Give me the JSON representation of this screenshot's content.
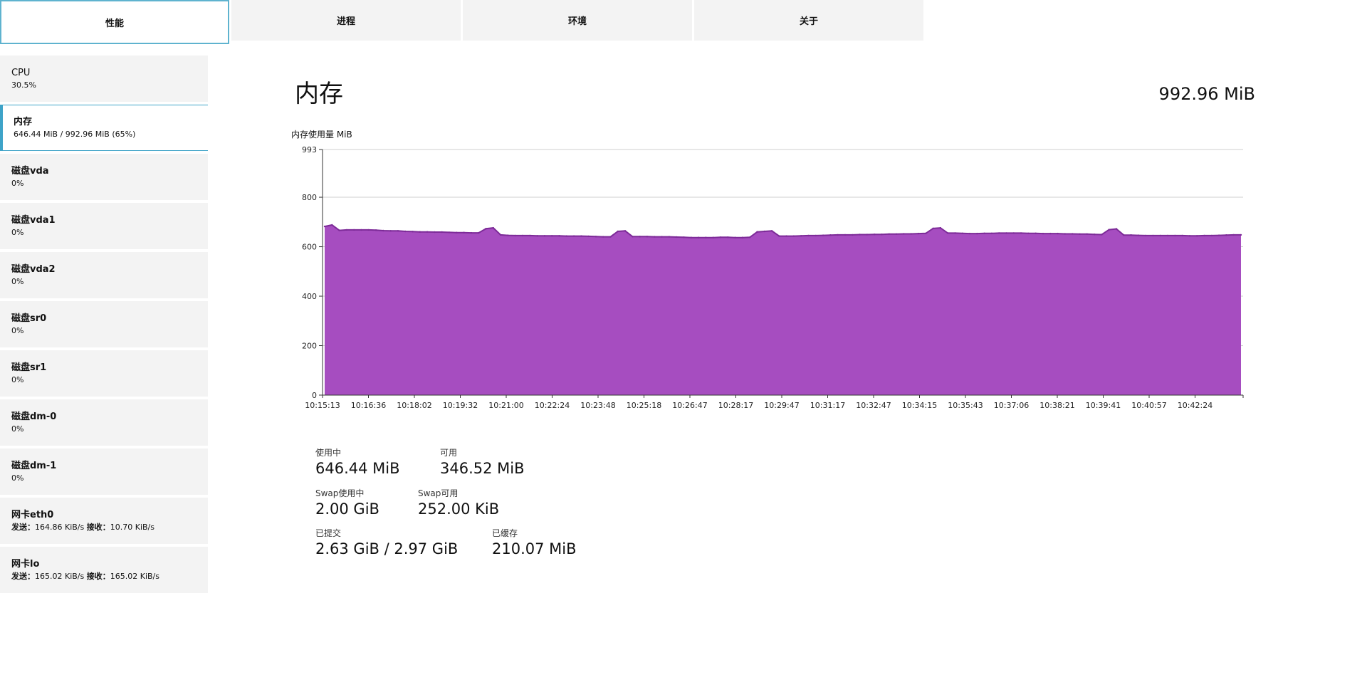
{
  "tabs": [
    {
      "label": "性能"
    },
    {
      "label": "进程"
    },
    {
      "label": "环境"
    },
    {
      "label": "关于"
    }
  ],
  "sidebar": {
    "items": [
      {
        "title": "CPU",
        "sub": "30.5%"
      },
      {
        "title": "内存",
        "sub": "646.44 MiB / 992.96 MiB (65%)"
      },
      {
        "title": "磁盘vda",
        "sub": "0%"
      },
      {
        "title": "磁盘vda1",
        "sub": "0%"
      },
      {
        "title": "磁盘vda2",
        "sub": "0%"
      },
      {
        "title": "磁盘sr0",
        "sub": "0%"
      },
      {
        "title": "磁盘sr1",
        "sub": "0%"
      },
      {
        "title": "磁盘dm-0",
        "sub": "0%"
      },
      {
        "title": "磁盘dm-1",
        "sub": "0%"
      },
      {
        "title": "网卡eth0",
        "send_label": "发送：",
        "send": "164.86 KiB/s",
        "recv_label": "接收：",
        "recv": "10.70 KiB/s"
      },
      {
        "title": "网卡lo",
        "send_label": "发送：",
        "send": "165.02 KiB/s",
        "recv_label": "接收：",
        "recv": "165.02 KiB/s"
      }
    ]
  },
  "main": {
    "title": "内存",
    "total": "992.96 MiB"
  },
  "chart_data": {
    "type": "area",
    "ylabel": "内存使用量 MiB",
    "ylim": [
      0,
      993
    ],
    "yticks": [
      0,
      200,
      400,
      600,
      800,
      993
    ],
    "x_labels": [
      "10:15:13",
      "10:16:36",
      "10:18:02",
      "10:19:32",
      "10:21:00",
      "10:22:24",
      "10:23:48",
      "10:25:18",
      "10:26:47",
      "10:28:17",
      "10:29:47",
      "10:31:17",
      "10:32:47",
      "10:34:15",
      "10:35:43",
      "10:37:06",
      "10:38:21",
      "10:39:41",
      "10:40:57",
      "10:42:24"
    ],
    "grid": true,
    "colors": {
      "fill": "#a64dc0",
      "line": "#7d2b98",
      "grid": "#cfcfcf"
    },
    "series": [
      {
        "values": [
          682,
          688,
          666,
          668,
          668,
          668,
          668,
          667,
          665,
          664,
          664,
          662,
          661,
          660,
          660,
          659,
          659,
          658,
          657,
          657,
          656,
          656,
          673,
          676,
          648,
          646,
          645,
          645,
          645,
          644,
          644,
          644,
          644,
          643,
          643,
          643,
          642,
          641,
          640,
          640,
          662,
          664,
          641,
          641,
          641,
          640,
          640,
          640,
          639,
          638,
          637,
          637,
          637,
          637,
          638,
          638,
          637,
          637,
          638,
          660,
          662,
          664,
          643,
          643,
          643,
          644,
          645,
          645,
          646,
          647,
          648,
          648,
          648,
          649,
          649,
          650,
          650,
          651,
          651,
          652,
          652,
          653,
          654,
          674,
          676,
          655,
          655,
          654,
          653,
          653,
          654,
          654,
          655,
          655,
          655,
          655,
          654,
          654,
          653,
          653,
          653,
          652,
          652,
          651,
          651,
          650,
          649,
          669,
          672,
          647,
          647,
          646,
          645,
          645,
          645,
          645,
          645,
          645,
          644,
          644,
          645,
          645,
          646,
          647,
          648,
          648
        ]
      }
    ]
  },
  "stats": [
    {
      "label": "使用中",
      "value": "646.44 MiB"
    },
    {
      "label": "可用",
      "value": "346.52 MiB"
    },
    {
      "label": "Swap使用中",
      "value": "2.00 GiB"
    },
    {
      "label": "Swap可用",
      "value": "252.00 KiB"
    },
    {
      "label": "已提交",
      "value": "2.63 GiB / 2.97 GiB"
    },
    {
      "label": "已缓存",
      "value": "210.07 MiB"
    }
  ]
}
